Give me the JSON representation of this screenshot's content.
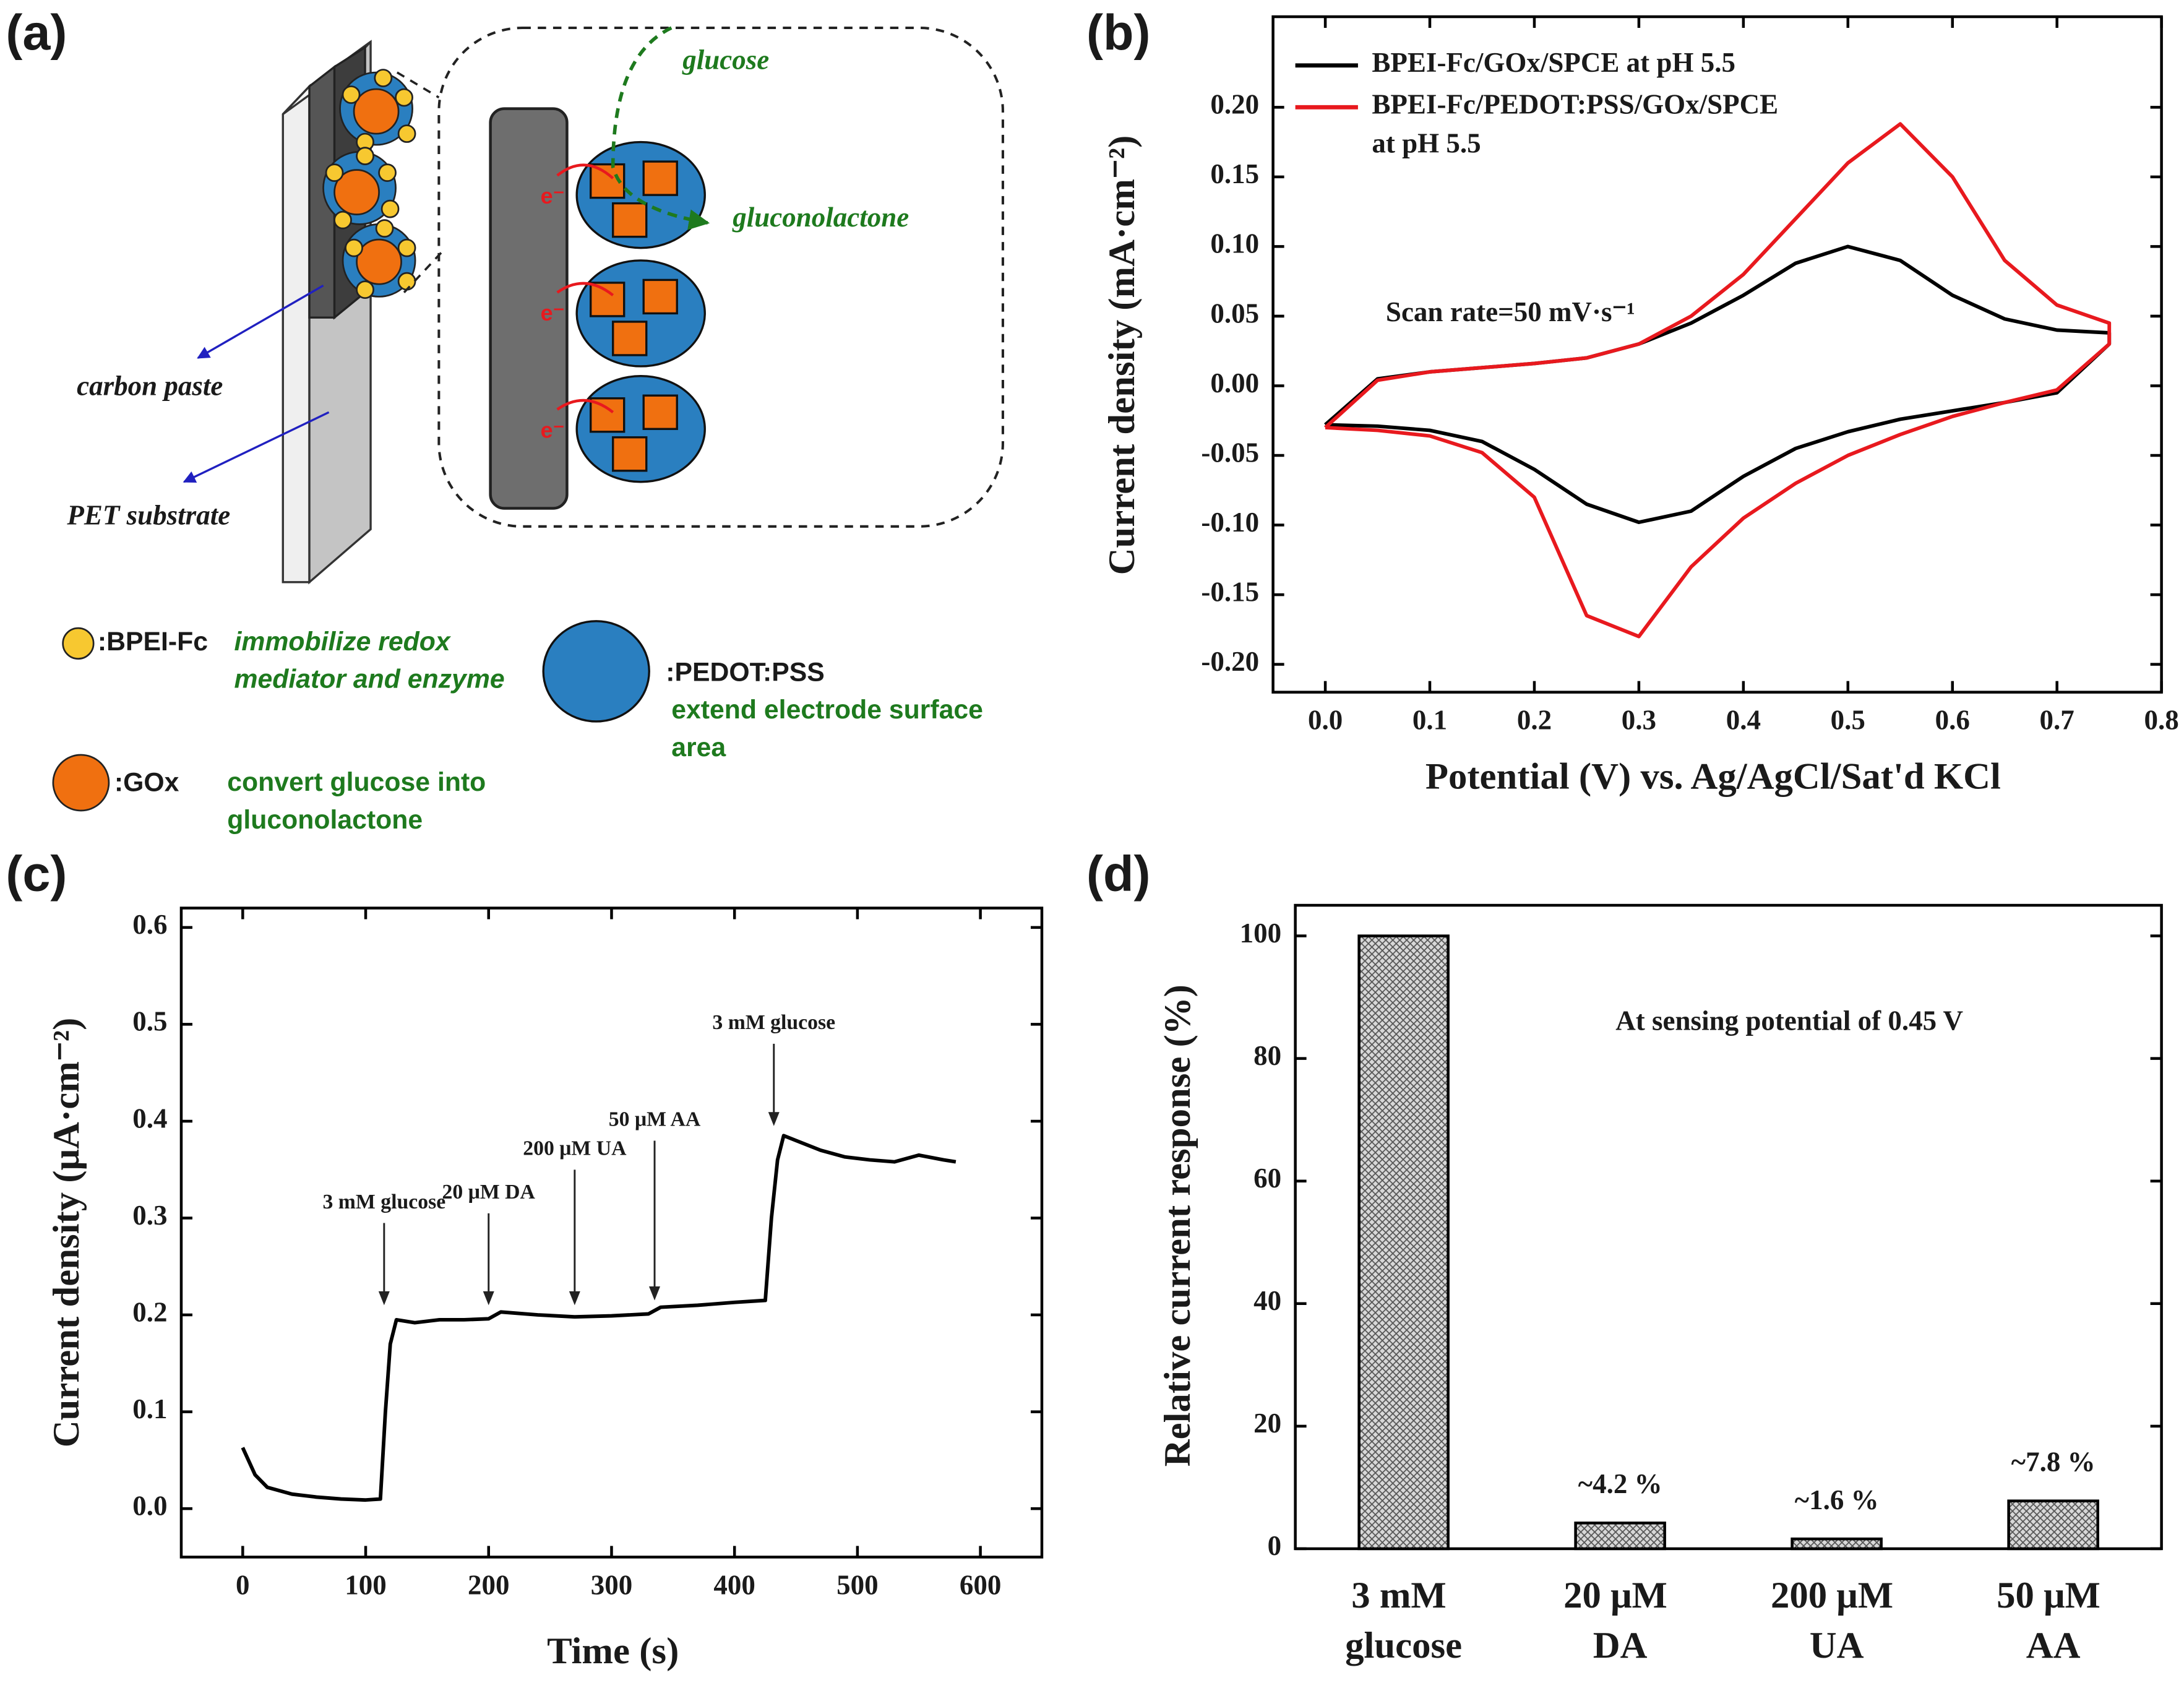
{
  "panels": [
    "(a)",
    "(b)",
    "(c)",
    "(d)"
  ],
  "diagram": {
    "glucose": "glucose",
    "gluconolactone": "gluconolactone",
    "carbon_paste": "carbon paste",
    "pet_substrate": "PET substrate",
    "electron": "e⁻",
    "legend": [
      {
        "symbol": ":BPEI-Fc",
        "description": "immobilize redox mediator and enzyme"
      },
      {
        "symbol": ":PEDOT:PSS",
        "description": "extend electrode surface area"
      },
      {
        "symbol": ":GOx",
        "description": "convert glucose into gluconolactone"
      }
    ]
  },
  "chart_data": [
    {
      "type": "line",
      "xlabel": "Potential (V) vs. Ag/AgCl/Sat'd KCl",
      "ylabel": "Current density (mA·cm⁻²)",
      "annotation": "Scan rate=50 mV·s⁻¹",
      "legend": "upper left",
      "x": [
        0,
        0.05,
        0.1,
        0.15,
        0.2,
        0.25,
        0.3,
        0.35,
        0.4,
        0.45,
        0.5,
        0.55,
        0.6,
        0.65,
        0.7,
        0.75,
        0.75,
        0.7,
        0.65,
        0.6,
        0.55,
        0.5,
        0.45,
        0.4,
        0.35,
        0.3,
        0.25,
        0.2,
        0.15,
        0.1,
        0.05,
        0
      ],
      "series": [
        {
          "name": "BPEI-Fc/GOx/SPCE at pH 5.5",
          "color": "#000000",
          "values": [
            -0.028,
            0.005,
            0.01,
            0.013,
            0.016,
            0.02,
            0.03,
            0.045,
            0.065,
            0.088,
            0.1,
            0.09,
            0.065,
            0.048,
            0.04,
            0.038,
            0.03,
            -0.005,
            -0.012,
            -0.018,
            -0.024,
            -0.033,
            -0.045,
            -0.065,
            -0.09,
            -0.098,
            -0.085,
            -0.06,
            -0.04,
            -0.032,
            -0.029,
            -0.028
          ]
        },
        {
          "name": "BPEI-Fc/PEDOT:PSS/GOx/SPCE at pH 5.5",
          "color": "#e8191e",
          "values": [
            -0.03,
            0.004,
            0.01,
            0.013,
            0.016,
            0.02,
            0.03,
            0.05,
            0.08,
            0.12,
            0.16,
            0.188,
            0.15,
            0.09,
            0.058,
            0.045,
            0.03,
            -0.003,
            -0.012,
            -0.022,
            -0.035,
            -0.05,
            -0.07,
            -0.095,
            -0.13,
            -0.18,
            -0.165,
            -0.08,
            -0.048,
            -0.036,
            -0.032,
            -0.03
          ]
        }
      ],
      "xlim": [
        -0.05,
        0.8
      ],
      "ylim": [
        -0.22,
        0.265
      ],
      "xticks": [
        {
          "value": 0,
          "label": "0.0"
        },
        0.1,
        0.2,
        0.3,
        0.4,
        0.5,
        0.6,
        0.7,
        0.8
      ],
      "yticks": [
        {
          "value": 0.2,
          "label": "0.20"
        },
        0.15,
        {
          "value": 0.1,
          "label": "0.10"
        },
        0.05,
        {
          "value": 0,
          "label": "0.00"
        },
        -0.05,
        {
          "value": -0.1,
          "label": "-0.10"
        },
        -0.15,
        {
          "value": -0.2,
          "label": "-0.20"
        }
      ]
    },
    {
      "type": "line",
      "xlabel": "Time (s)",
      "ylabel": "Current density (μA·cm⁻²)",
      "color": "#000000",
      "x": [
        0,
        10,
        20,
        40,
        60,
        80,
        100,
        112,
        116,
        120,
        125,
        140,
        160,
        180,
        200,
        210,
        240,
        270,
        300,
        330,
        340,
        370,
        400,
        425,
        430,
        435,
        440,
        450,
        470,
        490,
        510,
        530,
        550,
        570,
        580
      ],
      "values": [
        0.063,
        0.035,
        0.022,
        0.015,
        0.012,
        0.01,
        0.009,
        0.01,
        0.1,
        0.17,
        0.195,
        0.192,
        0.195,
        0.195,
        0.196,
        0.203,
        0.2,
        0.198,
        0.199,
        0.201,
        0.208,
        0.21,
        0.213,
        0.215,
        0.3,
        0.36,
        0.385,
        0.38,
        0.37,
        0.363,
        0.36,
        0.358,
        0.365,
        0.36,
        0.358
      ],
      "annotations": [
        {
          "text": "3 mM glucose",
          "x": 115,
          "y": 0.21,
          "text_y": 0.315
        },
        {
          "text": "20 μM DA",
          "x": 200,
          "y": 0.21,
          "text_y": 0.325
        },
        {
          "text": "200 μM UA",
          "x": 270,
          "y": 0.21,
          "text_y": 0.37
        },
        {
          "text": "50 μM AA",
          "x": 335,
          "y": 0.215,
          "text_y": 0.4
        },
        {
          "text": "3 mM glucose",
          "x": 432,
          "y": 0.395,
          "text_y": 0.5
        }
      ],
      "xlim": [
        -50,
        650
      ],
      "ylim": [
        -0.05,
        0.62
      ],
      "xticks": [
        0,
        100,
        200,
        300,
        400,
        500,
        600
      ],
      "yticks": [
        {
          "value": 0,
          "label": "0.0"
        },
        0.1,
        0.2,
        0.3,
        0.4,
        0.5,
        0.6
      ]
    },
    {
      "type": "bar",
      "ylabel": "Relative current response (%)",
      "annotation": "At sensing potential of 0.45 V",
      "color": "#a0a0a0",
      "categories": [
        "3 mM glucose",
        "20 μM DA",
        "200 μM UA",
        "50 μM AA"
      ],
      "values": [
        100,
        4.2,
        1.6,
        7.8
      ],
      "value_labels": [
        null,
        "~4.2 %",
        "~1.6 %",
        "~7.8 %"
      ],
      "ylim": [
        0,
        105
      ],
      "yticks": [
        0,
        20,
        40,
        60,
        80,
        100
      ]
    }
  ]
}
